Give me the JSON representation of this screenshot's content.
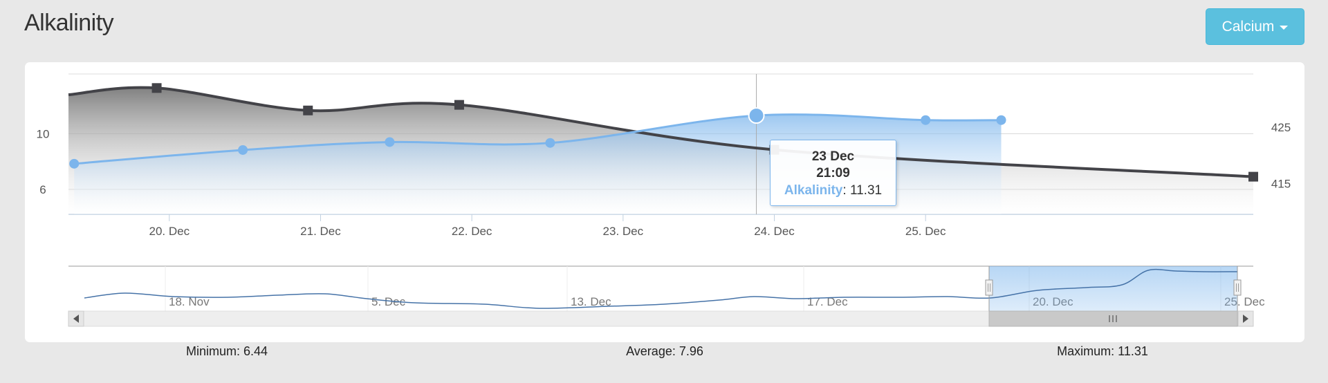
{
  "header": {
    "title": "Alkalinity",
    "dropdown_label": "Calcium"
  },
  "stats": {
    "minimum": "Minimum: 6.44",
    "average": "Average: 7.96",
    "maximum": "Maximum: 11.31"
  },
  "tooltip": {
    "date": "23 Dec",
    "time": "21:09",
    "series_name": "Alkalinity",
    "value": "11.31"
  },
  "chart_data": {
    "type": "area",
    "x_axis": {
      "type": "datetime",
      "range": [
        "2015-12-19T08:00",
        "2015-12-27T04:00"
      ],
      "ticks": [
        {
          "label": "20. Dec",
          "t": "2015-12-20T00:00"
        },
        {
          "label": "21. Dec",
          "t": "2015-12-21T00:00"
        },
        {
          "label": "22. Dec",
          "t": "2015-12-22T00:00"
        },
        {
          "label": "23. Dec",
          "t": "2015-12-23T00:00"
        },
        {
          "label": "24. Dec",
          "t": "2015-12-24T00:00"
        },
        {
          "label": "25. Dec",
          "t": "2015-12-25T00:00"
        }
      ]
    },
    "y_axis_left": {
      "range": [
        4.2,
        14.3
      ],
      "ticks": [
        6,
        10
      ]
    },
    "y_axis_right": {
      "range": [
        409.5,
        434.5
      ],
      "ticks": [
        415,
        425
      ]
    },
    "grid": true,
    "series": [
      {
        "name": "Alkalinity",
        "axis": "left",
        "color": "#7cb5ec",
        "marker": "circle",
        "points": [
          {
            "t": "2015-12-19T08:54",
            "y": 7.84
          },
          {
            "t": "2015-12-20T11:40",
            "y": 8.83
          },
          {
            "t": "2015-12-21T10:58",
            "y": 9.4
          },
          {
            "t": "2015-12-22T12:26",
            "y": 9.34
          },
          {
            "t": "2015-12-23T21:09",
            "y": 11.31
          },
          {
            "t": "2015-12-25T00:00",
            "y": 10.98
          },
          {
            "t": "2015-12-25T12:00",
            "y": 10.98
          }
        ]
      },
      {
        "series_color_note": "",
        "axis": "right",
        "color": "#434348",
        "marker": "square",
        "points": [
          {
            "t": "2015-12-19T08:00",
            "y": 430.8
          },
          {
            "t": "2015-12-19T22:00",
            "y": 432.0
          },
          {
            "t": "2015-12-20T22:00",
            "y": 428.0
          },
          {
            "t": "2015-12-21T22:00",
            "y": 429.0
          },
          {
            "t": "2015-12-24T00:00",
            "y": 421.0
          },
          {
            "t": "2015-12-27T04:00",
            "y": 416.2
          }
        ]
      }
    ],
    "navigator": {
      "labels": [
        "18. Nov",
        "5. Dec",
        "13. Dec",
        "17. Dec",
        "20. Dec",
        "25. Dec"
      ],
      "selected_range": [
        "20. Dec",
        "25. Dec"
      ]
    }
  }
}
